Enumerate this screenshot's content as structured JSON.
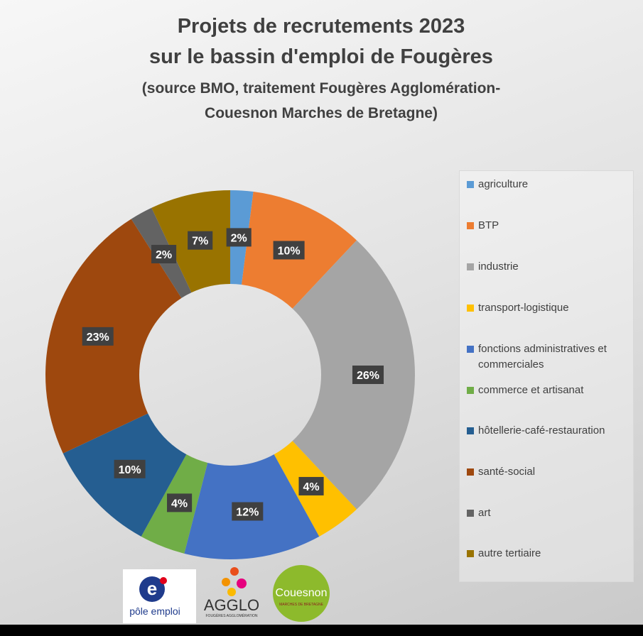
{
  "chart_data": {
    "type": "donut",
    "title": [
      "Projets de recrutements 2023",
      "sur le bassin d'emploi de Fougères"
    ],
    "subtitle": [
      "(source BMO, traitement Fougères Agglomération-",
      "Couesnon Marches de Bretagne)"
    ],
    "categories": [
      "agriculture",
      "BTP",
      "industrie",
      "transport-logistique",
      "fonctions administratives et commerciales",
      "commerce et artisanat",
      "hôtellerie-café-restauration",
      "santé-social",
      "art",
      "autre tertiaire"
    ],
    "values": [
      2,
      10,
      26,
      4,
      12,
      4,
      10,
      23,
      2,
      7
    ],
    "value_labels": [
      "2%",
      "10%",
      "26%",
      "4%",
      "12%",
      "4%",
      "10%",
      "23%",
      "2%",
      "7%"
    ],
    "colors": [
      "#5b9bd5",
      "#ed7d31",
      "#a5a5a5",
      "#ffc000",
      "#4472c4",
      "#70ad47",
      "#255e91",
      "#9e480e",
      "#636363",
      "#997300"
    ],
    "legend": "right"
  },
  "logos": {
    "pole_emploi": "pôle emploi",
    "agglo": "AGGLO",
    "agglo_sub": "FOUGÈRES AGGLOMÉRATION",
    "couesnon": "Couesnon",
    "couesnon_sub": "MARCHES DE BRETAGNE"
  }
}
